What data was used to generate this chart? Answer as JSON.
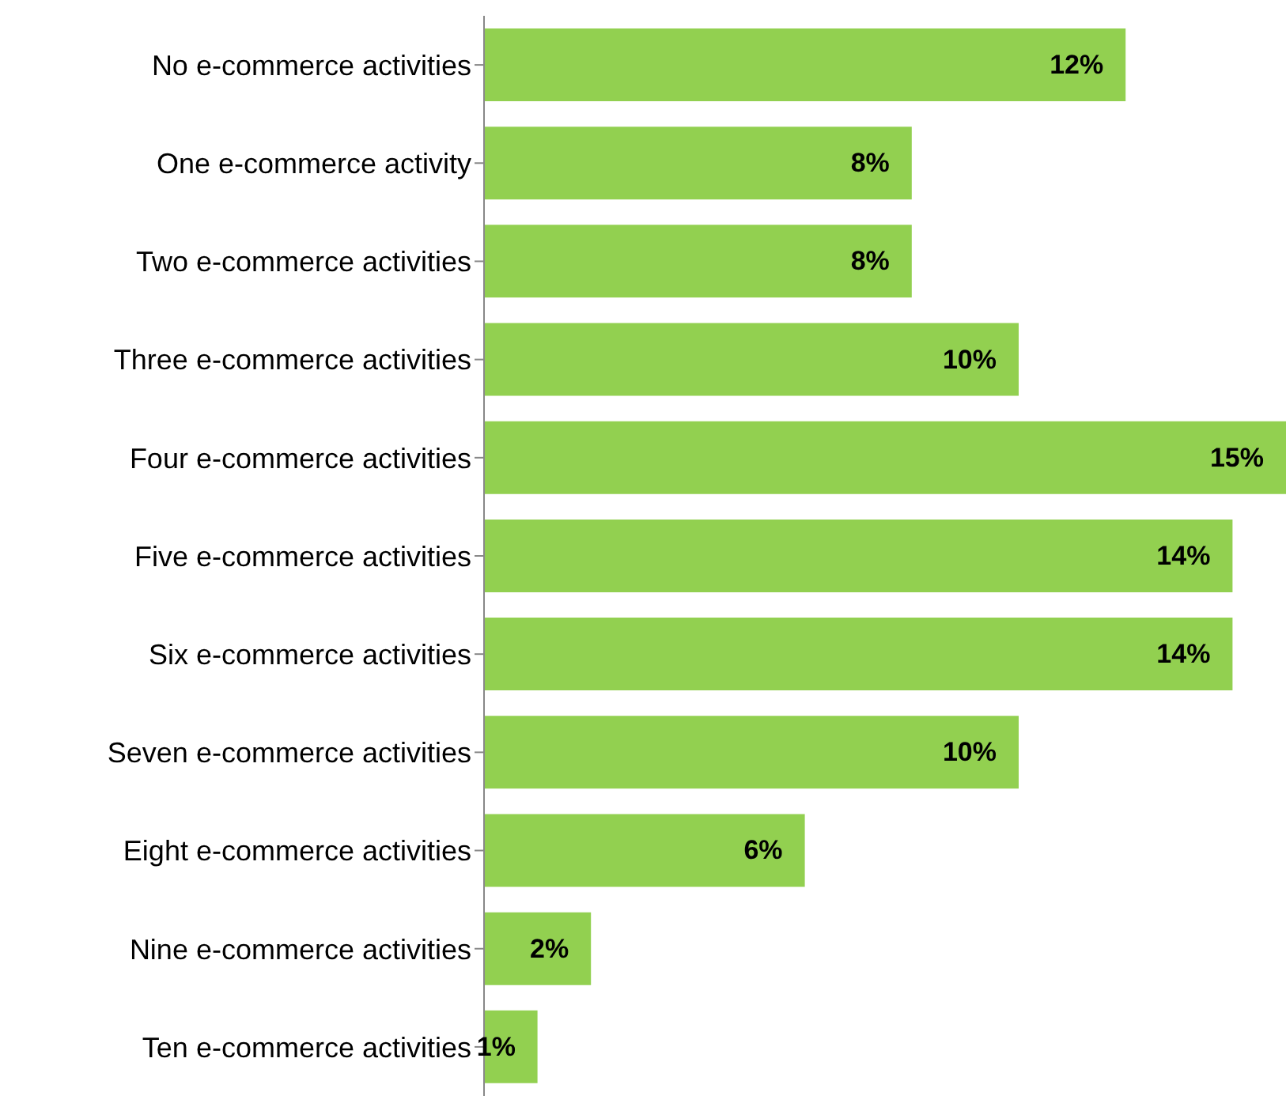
{
  "chart_data": {
    "type": "bar",
    "orientation": "horizontal",
    "xlim": [
      0,
      15
    ],
    "color": "#92d050",
    "categories": [
      "No e-commerce activities",
      "One e-commerce activity",
      "Two e-commerce activities",
      "Three e-commerce activities",
      "Four e-commerce activities",
      "Five e-commerce activities",
      "Six e-commerce activities",
      "Seven e-commerce activities",
      "Eight e-commerce activities",
      "Nine e-commerce activities",
      "Ten e-commerce activities"
    ],
    "values": [
      12,
      8,
      8,
      10,
      15,
      14,
      14,
      10,
      6,
      2,
      1
    ],
    "value_labels": [
      "12%",
      "8%",
      "8%",
      "10%",
      "15%",
      "14%",
      "14%",
      "10%",
      "6%",
      "2%",
      "1%"
    ]
  }
}
